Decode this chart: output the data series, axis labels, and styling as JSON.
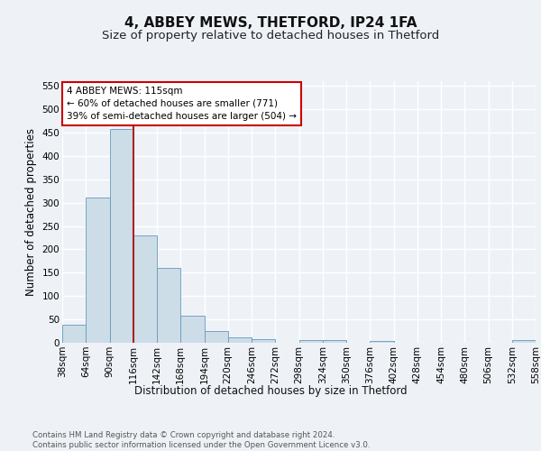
{
  "title": "4, ABBEY MEWS, THETFORD, IP24 1FA",
  "subtitle": "Size of property relative to detached houses in Thetford",
  "xlabel": "Distribution of detached houses by size in Thetford",
  "ylabel": "Number of detached properties",
  "bar_values": [
    38,
    311,
    457,
    230,
    160,
    57,
    25,
    11,
    8,
    0,
    5,
    5,
    0,
    3,
    0,
    0,
    0,
    0,
    0,
    5
  ],
  "bar_labels": [
    "38sqm",
    "64sqm",
    "90sqm",
    "116sqm",
    "142sqm",
    "168sqm",
    "194sqm",
    "220sqm",
    "246sqm",
    "272sqm",
    "298sqm",
    "324sqm",
    "350sqm",
    "376sqm",
    "402sqm",
    "428sqm",
    "454sqm",
    "480sqm",
    "506sqm",
    "532sqm",
    "558sqm"
  ],
  "bar_color": "#ccdde8",
  "bar_edge_color": "#6699bb",
  "vline_color": "#aa2222",
  "annotation_text": "4 ABBEY MEWS: 115sqm\n← 60% of detached houses are smaller (771)\n39% of semi-detached houses are larger (504) →",
  "annotation_box_color": "#ffffff",
  "annotation_box_edge_color": "#cc0000",
  "ylim": [
    0,
    560
  ],
  "yticks": [
    0,
    50,
    100,
    150,
    200,
    250,
    300,
    350,
    400,
    450,
    500,
    550
  ],
  "footer_text": "Contains HM Land Registry data © Crown copyright and database right 2024.\nContains public sector information licensed under the Open Government Licence v3.0.",
  "background_color": "#eef2f7",
  "plot_background_color": "#eef2f7",
  "grid_color": "#ffffff",
  "title_fontsize": 11,
  "subtitle_fontsize": 9.5,
  "axis_label_fontsize": 8.5,
  "tick_fontsize": 7.5,
  "footer_fontsize": 6.2
}
